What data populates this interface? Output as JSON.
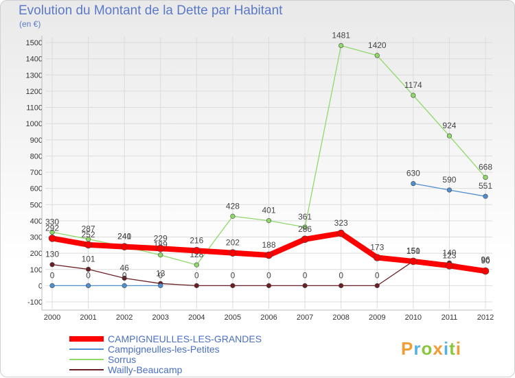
{
  "title": "Evolution du Montant de la Dette par Habitant",
  "unit": "(en €)",
  "brand": "Proxiti",
  "chart_data": {
    "type": "line",
    "title": "Evolution du Montant de la Dette par Habitant",
    "ylabel": "(en €)",
    "xlabel": "",
    "ylim": [
      -100,
      1500
    ],
    "yticks": [
      "-100",
      "0",
      "100",
      "200",
      "300",
      "400",
      "500",
      "600",
      "700",
      "800",
      "900",
      "1000",
      "1100",
      "1200",
      "1300",
      "1400",
      "1500"
    ],
    "x": [
      "2000",
      "2001",
      "2002",
      "2003",
      "2004",
      "2005",
      "2006",
      "2007",
      "2008",
      "2009",
      "2010",
      "2011",
      "2012"
    ],
    "grid": true,
    "legend": "bottom-left",
    "series": [
      {
        "name": "Wailly-Beaucamp",
        "color": "#6b1f24",
        "values": [
          130,
          101,
          46,
          13,
          0,
          0,
          0,
          0,
          0,
          0,
          151,
          140,
          96
        ]
      },
      {
        "name": "Sorrus",
        "color": "#8fd96a",
        "values": [
          330,
          287,
          241,
          189,
          128,
          428,
          401,
          361,
          1481,
          1420,
          1174,
          924,
          668
        ]
      },
      {
        "name": "Campigneulles-les-Petites",
        "color": "#4f8fcf",
        "values": [
          0,
          0,
          0,
          0,
          null,
          null,
          null,
          null,
          null,
          null,
          630,
          590,
          551
        ]
      },
      {
        "name": "CAMPIGNEULLES-LES-GRANDES",
        "color": "#ff0000",
        "values": [
          292,
          252,
          240,
          229,
          216,
          202,
          188,
          286,
          323,
          173,
          150,
          123,
          90
        ]
      }
    ]
  }
}
